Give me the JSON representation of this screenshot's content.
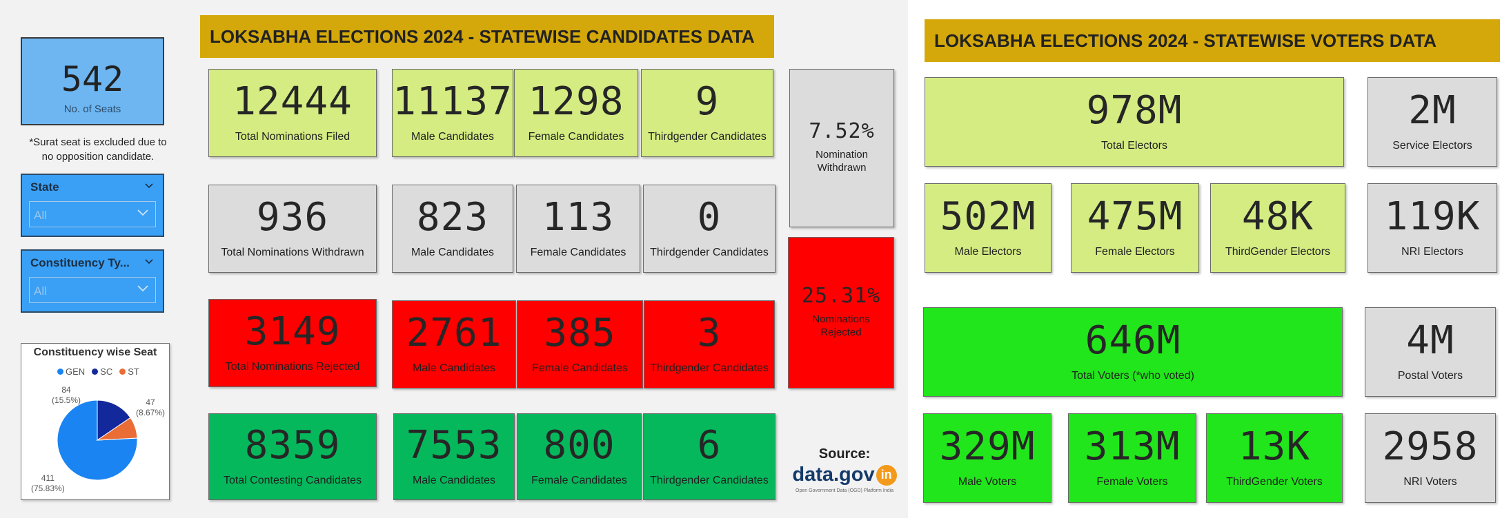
{
  "candidates": {
    "title": "LOKSABHA ELECTIONS 2024 -  STATEWISE CANDIDATES DATA",
    "seats": {
      "value": "542",
      "label": "No. of Seats"
    },
    "note": "*Surat seat is excluded due to no opposition candidate.",
    "slicers": [
      {
        "label": "State",
        "value": "All"
      },
      {
        "label": "Constituency Ty...",
        "value": "All"
      }
    ],
    "filed": {
      "total": "12444",
      "total_label": "Total Nominations Filed",
      "male": "11137",
      "male_label": "Male Candidates",
      "female": "1298",
      "female_label": "Female Candidates",
      "third": "9",
      "third_label": "Thirdgender Candidates"
    },
    "withdrawn": {
      "total": "936",
      "total_label": "Total Nominations Withdrawn",
      "male": "823",
      "male_label": "Male Candidates",
      "female": "113",
      "female_label": "Female Candidates",
      "third": "0",
      "third_label": "Thirdgender Candidates"
    },
    "rejected": {
      "total": "3149",
      "total_label": "Total Nominations Rejected",
      "male": "2761",
      "male_label": "Male Candidates",
      "female": "385",
      "female_label": "Female Candidates",
      "third": "3",
      "third_label": "Thirdgender Candidates"
    },
    "contesting": {
      "total": "8359",
      "total_label": "Total Contesting Candidates",
      "male": "7553",
      "male_label": "Male Candidates",
      "female": "800",
      "female_label": "Female Candidates",
      "third": "6",
      "third_label": "Thirdgender Candidates"
    },
    "withdrawn_pct": {
      "value": "7.52%",
      "label": "Nomination Withdrawn"
    },
    "rejected_pct": {
      "value": "25.31%",
      "label": "Nominations Rejected"
    },
    "source": {
      "label": "Source:",
      "brand": "data.gov",
      "brand_badge": "in",
      "tagline": "Open Government Data (OGD) Platform India"
    }
  },
  "chart_data": {
    "type": "pie",
    "title": "Constituency wise Seat",
    "legend_position": "top",
    "series": [
      {
        "name": "GEN",
        "value": 411,
        "percent": "75.83%",
        "color": "#1a84f2",
        "label_top": "411",
        "label_bottom": "(75.83%)"
      },
      {
        "name": "SC",
        "value": 84,
        "percent": "15.5%",
        "color": "#13289a",
        "label_top": "84",
        "label_bottom": "(15.5%)"
      },
      {
        "name": "ST",
        "value": 47,
        "percent": "8.67%",
        "color": "#ea6d36",
        "label_top": "47",
        "label_bottom": "(8.67%)"
      }
    ]
  },
  "voters": {
    "title": "LOKSABHA ELECTIONS 2024 -  STATEWISE VOTERS DATA",
    "total_electors": {
      "value": "978M",
      "label": "Total Electors"
    },
    "service_electors": {
      "value": "2M",
      "label": "Service Electors"
    },
    "male_electors": {
      "value": "502M",
      "label": "Male Electors"
    },
    "female_electors": {
      "value": "475M",
      "label": "Female Electors"
    },
    "third_electors": {
      "value": "48K",
      "label": "ThirdGender Electors"
    },
    "nri_electors": {
      "value": "119K",
      "label": "NRI Electors"
    },
    "total_voters": {
      "value": "646M",
      "label": "Total Voters (*who voted)"
    },
    "postal_voters": {
      "value": "4M",
      "label": "Postal Voters"
    },
    "male_voters": {
      "value": "329M",
      "label": "Male Voters"
    },
    "female_voters": {
      "value": "313M",
      "label": "Female Voters"
    },
    "third_voters": {
      "value": "13K",
      "label": "ThirdGender Voters"
    },
    "nri_voters": {
      "value": "2958",
      "label": "NRI Voters"
    }
  }
}
